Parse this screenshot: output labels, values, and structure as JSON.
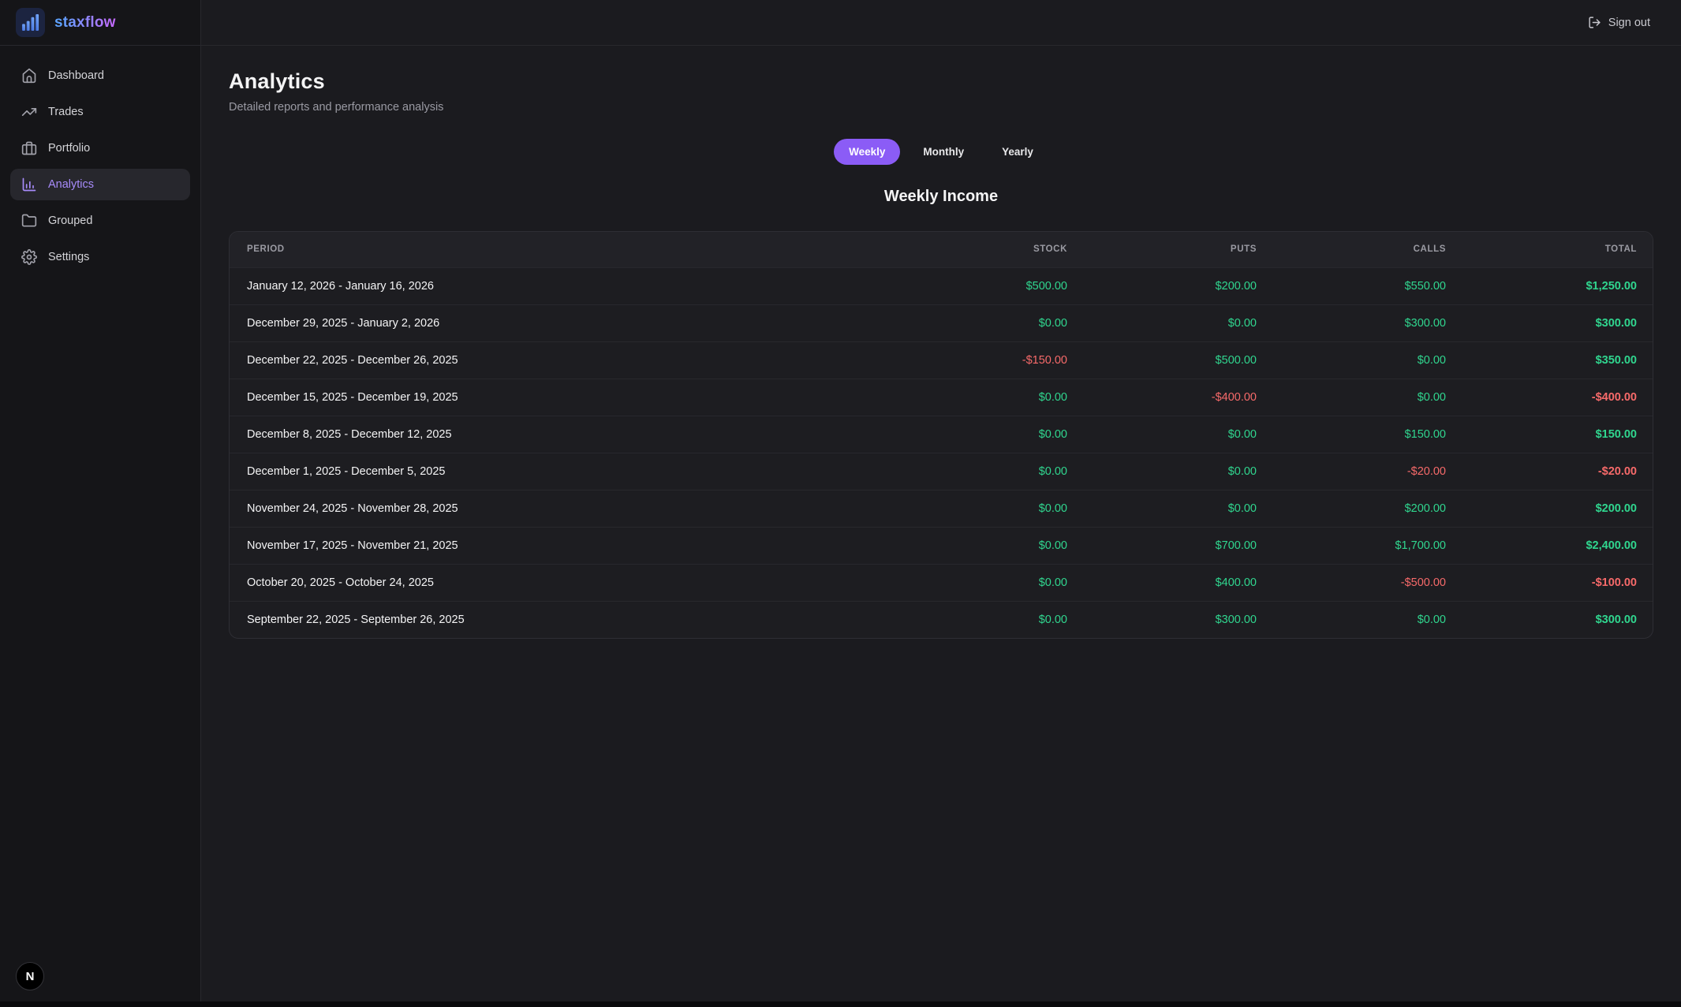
{
  "brand": {
    "name": "staxflow",
    "icon": "bar-chart-logo-icon"
  },
  "topbar": {
    "sign_out_label": "Sign out",
    "sign_out_icon": "log-out-icon"
  },
  "sidebar": {
    "items": [
      {
        "label": "Dashboard",
        "icon": "home-icon",
        "active": false
      },
      {
        "label": "Trades",
        "icon": "trending-up-icon",
        "active": false
      },
      {
        "label": "Portfolio",
        "icon": "briefcase-icon",
        "active": false
      },
      {
        "label": "Analytics",
        "icon": "bar-chart-icon",
        "active": true
      },
      {
        "label": "Grouped",
        "icon": "folder-icon",
        "active": false
      },
      {
        "label": "Settings",
        "icon": "gear-icon",
        "active": false
      }
    ]
  },
  "page": {
    "title": "Analytics",
    "subtitle": "Detailed reports and performance analysis"
  },
  "tabs": [
    {
      "label": "Weekly",
      "active": true
    },
    {
      "label": "Monthly",
      "active": false
    },
    {
      "label": "Yearly",
      "active": false
    }
  ],
  "section_title": "Weekly Income",
  "table": {
    "columns": [
      "Period",
      "Stock",
      "Puts",
      "Calls",
      "Total"
    ],
    "rows": [
      {
        "period": "January 12, 2026 - January 16, 2026",
        "stock": "$500.00",
        "puts": "$200.00",
        "calls": "$550.00",
        "total": "$1,250.00"
      },
      {
        "period": "December 29, 2025 - January 2, 2026",
        "stock": "$0.00",
        "puts": "$0.00",
        "calls": "$300.00",
        "total": "$300.00"
      },
      {
        "period": "December 22, 2025 - December 26, 2025",
        "stock": "-$150.00",
        "puts": "$500.00",
        "calls": "$0.00",
        "total": "$350.00"
      },
      {
        "period": "December 15, 2025 - December 19, 2025",
        "stock": "$0.00",
        "puts": "-$400.00",
        "calls": "$0.00",
        "total": "-$400.00"
      },
      {
        "period": "December 8, 2025 - December 12, 2025",
        "stock": "$0.00",
        "puts": "$0.00",
        "calls": "$150.00",
        "total": "$150.00"
      },
      {
        "period": "December 1, 2025 - December 5, 2025",
        "stock": "$0.00",
        "puts": "$0.00",
        "calls": "-$20.00",
        "total": "-$20.00"
      },
      {
        "period": "November 24, 2025 - November 28, 2025",
        "stock": "$0.00",
        "puts": "$0.00",
        "calls": "$200.00",
        "total": "$200.00"
      },
      {
        "period": "November 17, 2025 - November 21, 2025",
        "stock": "$0.00",
        "puts": "$700.00",
        "calls": "$1,700.00",
        "total": "$2,400.00"
      },
      {
        "period": "October 20, 2025 - October 24, 2025",
        "stock": "$0.00",
        "puts": "$400.00",
        "calls": "-$500.00",
        "total": "-$100.00"
      },
      {
        "period": "September 22, 2025 - September 26, 2025",
        "stock": "$0.00",
        "puts": "$300.00",
        "calls": "$0.00",
        "total": "$300.00"
      }
    ]
  },
  "dev_badge": {
    "initial": "N"
  },
  "colors": {
    "accent": "#8b5cf6",
    "accent_light": "#a78bfa",
    "positive": "#30d68f",
    "negative": "#f76a6a",
    "background_main": "#1b1b1f",
    "background_sidebar": "#151518"
  }
}
